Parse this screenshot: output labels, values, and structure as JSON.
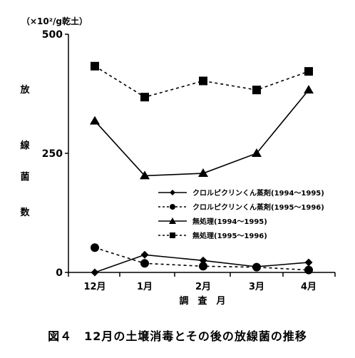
{
  "chart_data": {
    "type": "line",
    "categories": [
      "12月",
      "1月",
      "2月",
      "3月",
      "4月"
    ],
    "xlabel": "調　査　月",
    "ylabel_chars": [
      "放",
      "線",
      "菌",
      "数"
    ],
    "unit_label": "（×10²/g乾土）",
    "ylim": [
      0,
      500
    ],
    "yticks": [
      "0",
      "250",
      "500"
    ],
    "grid": false,
    "legend_position": "right",
    "series": [
      {
        "name": "クロルピクリンくん蒸剤(1994～1995)",
        "marker": "diamond",
        "line": "solid",
        "values": [
          0,
          37,
          25,
          12,
          21
        ]
      },
      {
        "name": "クロルピクリンくん蒸剤(1995～1996)",
        "marker": "circle",
        "line": "dashed",
        "values": [
          52,
          19,
          13,
          11,
          5
        ]
      },
      {
        "name": "無処理(1994～1995)",
        "marker": "triangle",
        "line": "solid",
        "values": [
          318,
          203,
          208,
          250,
          383
        ]
      },
      {
        "name": "無処理(1995～1996)",
        "marker": "square",
        "line": "dashed",
        "values": [
          433,
          368,
          402,
          383,
          422
        ]
      }
    ]
  },
  "caption": "図４　12月の土壌消毒とその後の放線菌の推移"
}
